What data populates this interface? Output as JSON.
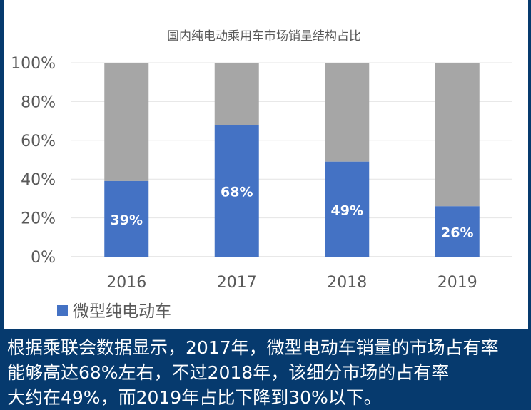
{
  "colors": {
    "series": "#4472c4",
    "remainder": "#a6a6a6",
    "background": "#063a6e",
    "caption_text": "#ffffff"
  },
  "chart_data": {
    "type": "bar",
    "stacked": true,
    "title": "国内纯电动乘用车市场销量结构占比",
    "categories": [
      "2016",
      "2017",
      "2018",
      "2019"
    ],
    "series": [
      {
        "name": "微型纯电动车",
        "values": [
          39,
          68,
          49,
          26
        ],
        "labels": [
          "39%",
          "68%",
          "49%",
          "26%"
        ]
      }
    ],
    "remainder_values": [
      61,
      32,
      51,
      74
    ],
    "yticks": [
      "0%",
      "20%",
      "40%",
      "60%",
      "80%",
      "100%"
    ],
    "ylim": [
      0,
      100
    ],
    "grid": true,
    "legend": "bottom-left"
  },
  "caption": {
    "lines": [
      "根据乘联会数据显示，2017年，微型电动车销量的市场占有率",
      "能够高达68%左右，不过2018年，该细分市场的占有率",
      "大约在49%，而2019年占比下降到30%以下。"
    ]
  }
}
